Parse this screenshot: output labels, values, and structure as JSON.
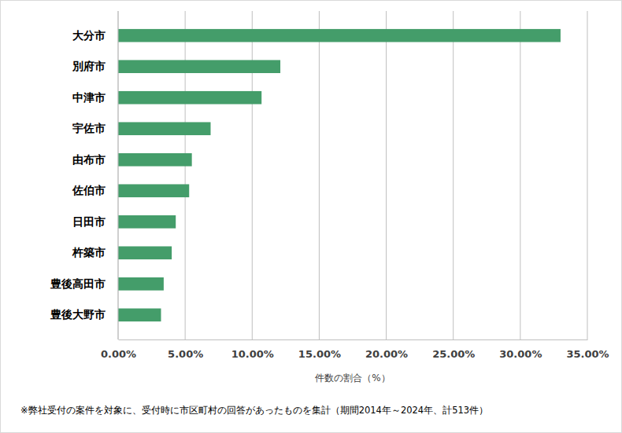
{
  "chart_data": {
    "type": "bar",
    "orientation": "horizontal",
    "categories": [
      "大分市",
      "別府市",
      "中津市",
      "宇佐市",
      "由布市",
      "佐伯市",
      "日田市",
      "杵築市",
      "豊後高田市",
      "豊後大野市"
    ],
    "values": [
      33.0,
      12.1,
      10.7,
      6.9,
      5.5,
      5.3,
      4.3,
      4.0,
      3.4,
      3.2
    ],
    "color": "#449d6a",
    "xlabel": "件数の割合（%）",
    "xlim": [
      0,
      35
    ],
    "xticks": [
      {
        "value": 0,
        "label": "0.00%"
      },
      {
        "value": 5,
        "label": "5.00%"
      },
      {
        "value": 10,
        "label": "10.00%"
      },
      {
        "value": 15,
        "label": "15.00%"
      },
      {
        "value": 20,
        "label": "20.00%"
      },
      {
        "value": 25,
        "label": "25.00%"
      },
      {
        "value": 30,
        "label": "30.00%"
      },
      {
        "value": 35,
        "label": "35.00%"
      }
    ],
    "grid": true,
    "annotations": [
      "※弊社受付の案件を対象に、受付時に市区町村の回答があったものを集計（期間2014年～2024年、計513件）"
    ]
  }
}
